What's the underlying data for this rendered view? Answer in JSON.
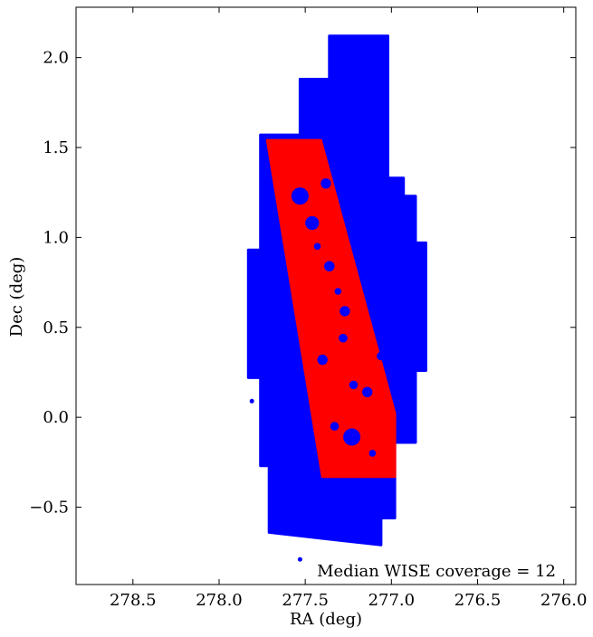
{
  "chart_data": {
    "type": "scatter",
    "title": "",
    "xlabel": "RA (deg)",
    "ylabel": "Dec (deg)",
    "xlim": [
      278.83,
      275.93
    ],
    "ylim": [
      -0.93,
      2.28
    ],
    "x_inverted": true,
    "grid": false,
    "xticks": [
      278.5,
      278.0,
      277.5,
      277.0,
      276.5,
      276.0
    ],
    "xtick_labels": [
      "278.5",
      "278.0",
      "277.5",
      "277.0",
      "276.5",
      "276.0"
    ],
    "yticks": [
      -0.5,
      0.0,
      0.5,
      1.0,
      1.5,
      2.0
    ],
    "ytick_labels": [
      "−0.5",
      "0.0",
      "0.5",
      "1.0",
      "1.5",
      "2.0"
    ],
    "annotation": "Median WISE coverage = 12",
    "colors": {
      "wise": "#0000ff",
      "selected": "#ff0000"
    },
    "series": [
      {
        "color": "#0000ff",
        "regions": [
          [
            [
              277.73,
              1.57
            ],
            [
              277.53,
              1.57
            ],
            [
              277.53,
              1.88
            ],
            [
              277.36,
              1.88
            ],
            [
              277.36,
              2.12
            ],
            [
              277.02,
              2.12
            ],
            [
              277.02,
              1.33
            ],
            [
              276.93,
              1.33
            ],
            [
              276.93,
              1.23
            ],
            [
              276.86,
              1.23
            ],
            [
              276.86,
              0.97
            ],
            [
              276.8,
              0.97
            ],
            [
              276.8,
              0.26
            ],
            [
              276.86,
              0.26
            ],
            [
              276.86,
              -0.14
            ],
            [
              276.98,
              -0.14
            ],
            [
              276.98,
              -0.56
            ],
            [
              277.06,
              -0.56
            ],
            [
              277.06,
              -0.71
            ],
            [
              277.71,
              -0.64
            ],
            [
              277.71,
              -0.27
            ],
            [
              277.76,
              -0.27
            ],
            [
              277.76,
              0.22
            ],
            [
              277.83,
              0.22
            ],
            [
              277.83,
              0.93
            ],
            [
              277.76,
              0.93
            ],
            [
              277.76,
              1.57
            ]
          ]
        ],
        "points": [
          [
            277.81,
            0.09
          ],
          [
            277.53,
            -0.79
          ]
        ]
      },
      {
        "color": "#ff0000",
        "regions": [
          [
            [
              277.72,
              1.54
            ],
            [
              277.41,
              1.54
            ],
            [
              276.98,
              0.02
            ],
            [
              276.98,
              -0.33
            ],
            [
              277.4,
              -0.33
            ],
            [
              277.55,
              0.55
            ]
          ]
        ],
        "holes": [
          [
            277.53,
            1.23,
            0.05
          ],
          [
            277.46,
            1.08,
            0.04
          ],
          [
            277.38,
            1.3,
            0.03
          ],
          [
            277.36,
            0.84,
            0.03
          ],
          [
            277.27,
            0.59,
            0.03
          ],
          [
            277.4,
            0.32,
            0.03
          ],
          [
            277.28,
            0.44,
            0.025
          ],
          [
            277.23,
            -0.11,
            0.05
          ],
          [
            277.14,
            0.14,
            0.03
          ],
          [
            277.33,
            -0.05,
            0.025
          ],
          [
            277.06,
            0.34,
            0.025
          ],
          [
            277.22,
            0.18,
            0.025
          ],
          [
            277.31,
            0.7,
            0.02
          ],
          [
            277.43,
            0.95,
            0.02
          ],
          [
            277.11,
            -0.2,
            0.02
          ]
        ]
      }
    ]
  }
}
